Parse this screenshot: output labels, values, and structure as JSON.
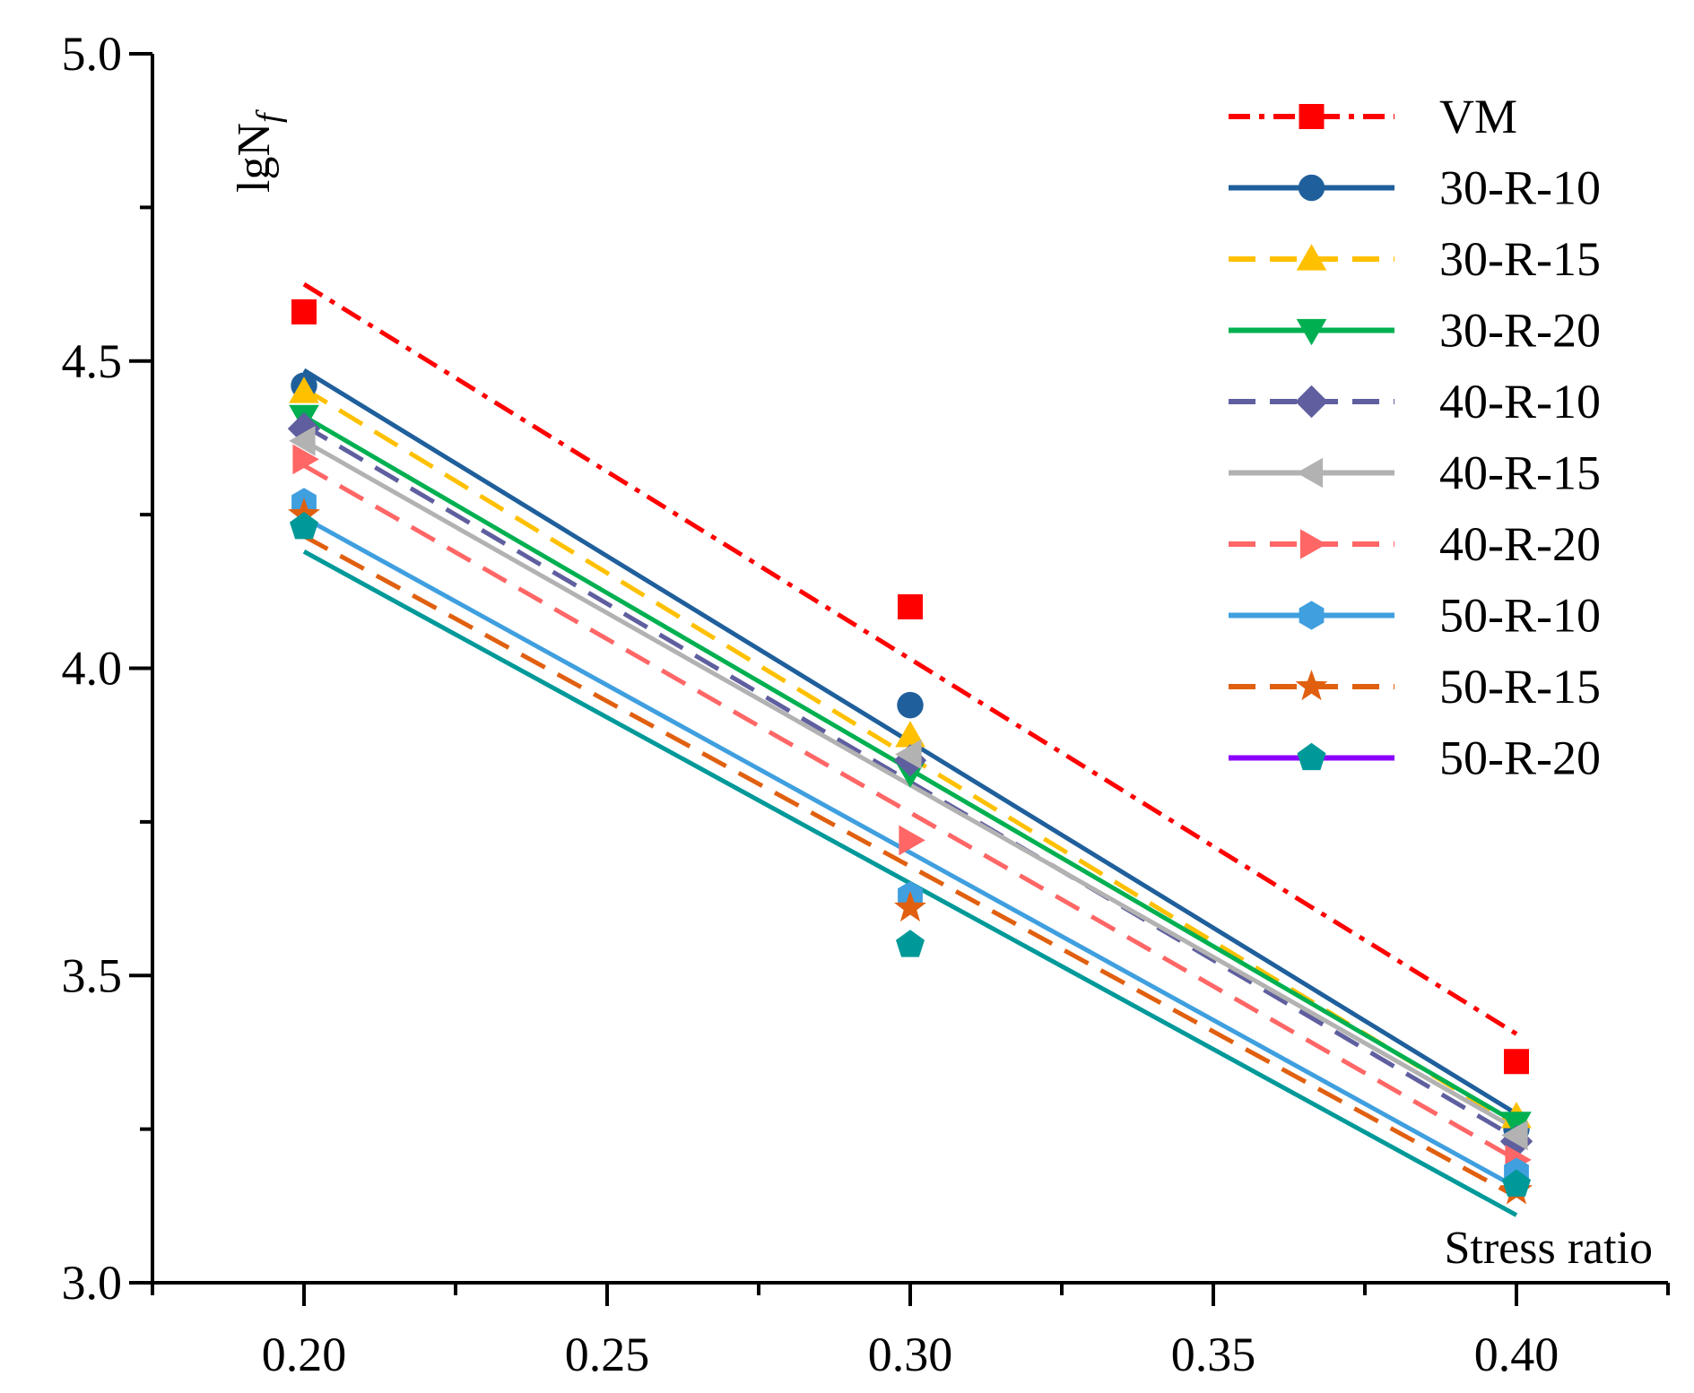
{
  "chart_data": {
    "type": "scatter",
    "title": "",
    "xlabel": "Stress ratio",
    "ylabel": "lgN",
    "ylabel_sub": "f",
    "xlim": [
      0.175,
      0.425
    ],
    "ylim": [
      3.0,
      5.0
    ],
    "x_ticks": [
      0.2,
      0.25,
      0.3,
      0.35,
      0.4
    ],
    "x_tick_labels": [
      "0.20",
      "0.25",
      "0.30",
      "0.35",
      "0.40"
    ],
    "y_ticks": [
      3.0,
      3.5,
      4.0,
      4.5,
      5.0
    ],
    "y_tick_labels": [
      "3.0",
      "3.5",
      "4.0",
      "4.5",
      "5.0"
    ],
    "legend_position": "top-right",
    "fit_x_range": [
      0.2,
      0.4
    ],
    "series": [
      {
        "name": "VM",
        "color": "#FF0000",
        "marker": "square",
        "line_style": "dashdot",
        "x": [
          0.2,
          0.3,
          0.4
        ],
        "y": [
          4.58,
          4.1,
          3.36
        ],
        "fit": [
          4.625,
          3.405
        ]
      },
      {
        "name": "30-R-10",
        "color": "#1F5F9B",
        "marker": "circle",
        "line_style": "solid",
        "x": [
          0.2,
          0.3,
          0.4
        ],
        "y": [
          4.46,
          3.94,
          3.25
        ],
        "fit": [
          4.485,
          3.275
        ]
      },
      {
        "name": "30-R-15",
        "color": "#FFC000",
        "marker": "triangle-up",
        "line_style": "dashed",
        "x": [
          0.2,
          0.3,
          0.4
        ],
        "y": [
          4.45,
          3.89,
          3.27
        ],
        "fit": [
          4.455,
          3.255
        ]
      },
      {
        "name": "30-R-20",
        "color": "#00B050",
        "marker": "triangle-down",
        "line_style": "solid",
        "x": [
          0.2,
          0.3,
          0.4
        ],
        "y": [
          4.41,
          3.83,
          3.26
        ],
        "fit": [
          4.41,
          3.26
        ]
      },
      {
        "name": "40-R-10",
        "color": "#5F5F9F",
        "marker": "diamond",
        "line_style": "dashed",
        "x": [
          0.2,
          0.3,
          0.4
        ],
        "y": [
          4.39,
          3.85,
          3.23
        ],
        "fit": [
          4.395,
          3.235
        ]
      },
      {
        "name": "40-R-15",
        "color": "#B2B2B2",
        "marker": "triangle-left",
        "line_style": "solid",
        "x": [
          0.2,
          0.3,
          0.4
        ],
        "y": [
          4.37,
          3.86,
          3.24
        ],
        "fit": [
          4.37,
          3.25
        ]
      },
      {
        "name": "40-R-20",
        "color": "#FF6666",
        "marker": "triangle-right",
        "line_style": "dashed",
        "x": [
          0.2,
          0.3,
          0.4
        ],
        "y": [
          4.34,
          3.72,
          3.2
        ],
        "fit": [
          4.33,
          3.2
        ]
      },
      {
        "name": "50-R-10",
        "color": "#3F9FDF",
        "marker": "hexagon",
        "line_style": "solid",
        "x": [
          0.2,
          0.3,
          0.4
        ],
        "y": [
          4.27,
          3.63,
          3.18
        ],
        "fit": [
          4.245,
          3.155
        ]
      },
      {
        "name": "50-R-15",
        "color": "#E06010",
        "marker": "star",
        "line_style": "dashed",
        "x": [
          0.2,
          0.3,
          0.4
        ],
        "y": [
          4.25,
          3.61,
          3.15
        ],
        "fit": [
          4.215,
          3.14
        ]
      },
      {
        "name": "50-R-20",
        "color": "#009999",
        "marker": "pentagon",
        "line_style": "solid",
        "x": [
          0.2,
          0.3,
          0.4
        ],
        "y": [
          4.23,
          3.55,
          3.16
        ],
        "fit": [
          4.19,
          3.11
        ],
        "legend_line_color": "#8B00FF"
      }
    ]
  }
}
